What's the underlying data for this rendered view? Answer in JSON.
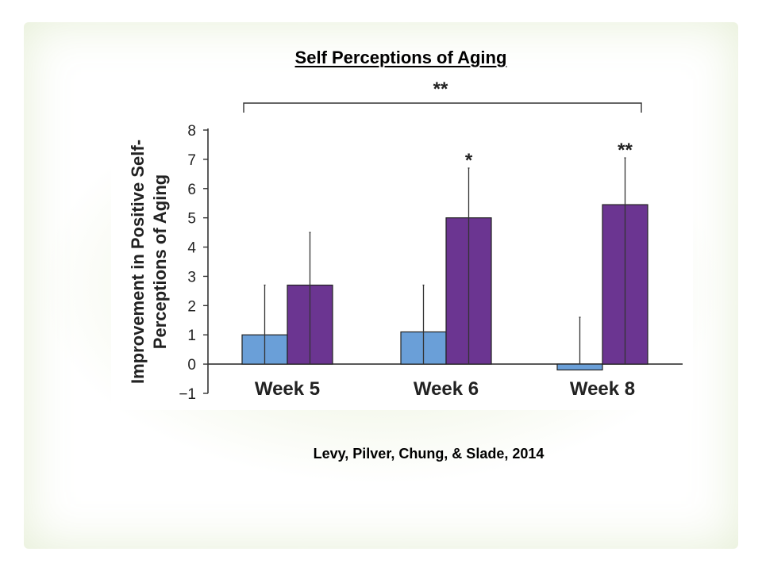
{
  "slide": {
    "title": "Self Perceptions of Aging",
    "citation": "Levy, Pilver, Chung, & Slade, 2014"
  },
  "chart_data": {
    "type": "bar",
    "title": "",
    "xlabel": "",
    "ylabel": "Improvement in Positive Self-Perceptions of Aging",
    "ylabel_lines": [
      "Improvement in Positive Self-",
      "Perceptions of Aging"
    ],
    "categories": [
      "Week 5",
      "Week 6",
      "Week 8"
    ],
    "series": [
      {
        "color": "#6a9fd8",
        "values": [
          1.0,
          1.1,
          -0.2
        ],
        "error_upper": [
          2.7,
          2.7,
          1.6
        ]
      },
      {
        "color": "#6b3591",
        "values": [
          2.7,
          5.0,
          5.45
        ],
        "error_upper": [
          4.5,
          6.7,
          7.05
        ]
      }
    ],
    "ylim": [
      -1,
      8
    ],
    "yticks": [
      -1,
      0,
      1,
      2,
      3,
      4,
      5,
      6,
      7,
      8
    ],
    "ytick_labels": [
      "−1",
      "0",
      "1",
      "2",
      "3",
      "4",
      "5",
      "6",
      "7",
      "8"
    ],
    "significance": [
      {
        "category": "Week 6",
        "label": "*"
      },
      {
        "category": "Week 8",
        "label": "**"
      }
    ],
    "bracket": {
      "from": "Week 5",
      "to": "Week 8",
      "label": "**"
    },
    "grid": false,
    "legend": "none"
  }
}
